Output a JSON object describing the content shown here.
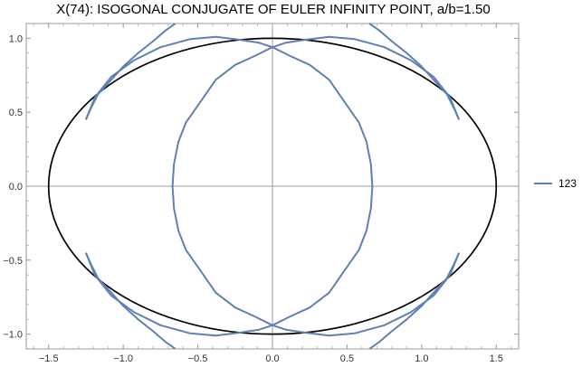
{
  "chart_data": {
    "type": "line",
    "title": "X(74): ISOGONAL CONJUGATE OF EULER INFINITY POINT, a/b=1.50",
    "xlim": [
      -1.65,
      1.65
    ],
    "ylim": [
      -1.1,
      1.1
    ],
    "xticks": [
      {
        "value": -1.5,
        "label": "−1.5"
      },
      {
        "value": -1.0,
        "label": "−1.0"
      },
      {
        "value": -0.5,
        "label": "−0.5"
      },
      {
        "value": 0.0,
        "label": "0.0"
      },
      {
        "value": 0.5,
        "label": "0.5"
      },
      {
        "value": 1.0,
        "label": "1.0"
      },
      {
        "value": 1.5,
        "label": "1.5"
      }
    ],
    "yticks": [
      {
        "value": -1.0,
        "label": "−1.0"
      },
      {
        "value": -0.5,
        "label": "−0.5"
      },
      {
        "value": 0.0,
        "label": "0.0"
      },
      {
        "value": 0.5,
        "label": "0.5"
      },
      {
        "value": 1.0,
        "label": "1.0"
      }
    ],
    "grid": false,
    "legend_position": "right",
    "ellipse": {
      "a": 1.5,
      "b": 1.0,
      "color": "#000000"
    },
    "series": [
      {
        "name": "123",
        "color": "#5e81b5",
        "segments": [
          [
            [
              -1.25,
              0.45
            ],
            [
              -1.22,
              0.52
            ],
            [
              -1.17,
              0.62
            ],
            [
              -1.08,
              0.72
            ],
            [
              -1.0,
              0.81
            ],
            [
              -0.9,
              0.9
            ],
            [
              -0.8,
              0.98
            ],
            [
              -0.72,
              1.05
            ],
            [
              -0.65,
              1.1
            ]
          ],
          [
            [
              1.25,
              0.45
            ],
            [
              1.22,
              0.52
            ],
            [
              1.17,
              0.62
            ],
            [
              1.08,
              0.72
            ],
            [
              1.0,
              0.81
            ],
            [
              0.9,
              0.9
            ],
            [
              0.8,
              0.98
            ],
            [
              0.72,
              1.05
            ],
            [
              0.65,
              1.1
            ]
          ],
          [
            [
              -1.25,
              -0.45
            ],
            [
              -1.22,
              -0.52
            ],
            [
              -1.17,
              -0.62
            ],
            [
              -1.08,
              -0.72
            ],
            [
              -1.0,
              -0.81
            ],
            [
              -0.9,
              -0.9
            ],
            [
              -0.8,
              -0.98
            ],
            [
              -0.72,
              -1.05
            ],
            [
              -0.65,
              -1.1
            ]
          ],
          [
            [
              1.25,
              -0.45
            ],
            [
              1.22,
              -0.52
            ],
            [
              1.17,
              -0.62
            ],
            [
              1.08,
              -0.72
            ],
            [
              1.0,
              -0.81
            ],
            [
              0.9,
              -0.9
            ],
            [
              0.8,
              -0.98
            ],
            [
              0.72,
              -1.05
            ],
            [
              0.65,
              -1.1
            ]
          ],
          [
            [
              -1.25,
              0.45
            ],
            [
              -1.19,
              0.6
            ],
            [
              -1.08,
              0.74
            ],
            [
              -0.93,
              0.85
            ],
            [
              -0.75,
              0.94
            ],
            [
              -0.55,
              0.995
            ],
            [
              -0.38,
              1.01
            ],
            [
              -0.22,
              0.99
            ],
            [
              -0.09,
              0.97
            ],
            [
              0.0,
              0.94
            ],
            [
              0.12,
              0.88
            ],
            [
              0.25,
              0.82
            ],
            [
              0.38,
              0.72
            ],
            [
              0.49,
              0.56
            ],
            [
              0.58,
              0.43
            ],
            [
              0.63,
              0.3
            ],
            [
              0.66,
              0.15
            ],
            [
              0.67,
              0.0
            ],
            [
              0.66,
              -0.15
            ],
            [
              0.63,
              -0.3
            ],
            [
              0.58,
              -0.43
            ],
            [
              0.49,
              -0.56
            ],
            [
              0.38,
              -0.72
            ],
            [
              0.25,
              -0.82
            ],
            [
              0.12,
              -0.88
            ],
            [
              0.0,
              -0.94
            ],
            [
              -0.09,
              -0.97
            ],
            [
              -0.22,
              -0.99
            ],
            [
              -0.38,
              -1.01
            ],
            [
              -0.55,
              -0.995
            ],
            [
              -0.75,
              -0.94
            ],
            [
              -0.93,
              -0.85
            ],
            [
              -1.08,
              -0.74
            ],
            [
              -1.19,
              -0.6
            ],
            [
              -1.25,
              -0.45
            ]
          ],
          [
            [
              1.25,
              0.45
            ],
            [
              1.19,
              0.6
            ],
            [
              1.08,
              0.74
            ],
            [
              0.93,
              0.85
            ],
            [
              0.75,
              0.94
            ],
            [
              0.55,
              0.995
            ],
            [
              0.38,
              1.01
            ],
            [
              0.22,
              0.99
            ],
            [
              0.09,
              0.97
            ],
            [
              0.0,
              0.94
            ],
            [
              -0.12,
              0.88
            ],
            [
              -0.25,
              0.82
            ],
            [
              -0.38,
              0.72
            ],
            [
              -0.49,
              0.56
            ],
            [
              -0.58,
              0.43
            ],
            [
              -0.63,
              0.3
            ],
            [
              -0.66,
              0.15
            ],
            [
              -0.67,
              0.0
            ],
            [
              -0.66,
              -0.15
            ],
            [
              -0.63,
              -0.3
            ],
            [
              -0.58,
              -0.43
            ],
            [
              -0.49,
              -0.56
            ],
            [
              -0.38,
              -0.72
            ],
            [
              -0.25,
              -0.82
            ],
            [
              -0.12,
              -0.88
            ],
            [
              0.0,
              -0.94
            ],
            [
              0.09,
              -0.97
            ],
            [
              0.22,
              -0.99
            ],
            [
              0.38,
              -1.01
            ],
            [
              0.55,
              -0.995
            ],
            [
              0.75,
              -0.94
            ],
            [
              0.93,
              -0.85
            ],
            [
              1.08,
              -0.74
            ],
            [
              1.19,
              -0.6
            ],
            [
              1.25,
              -0.45
            ]
          ]
        ]
      }
    ]
  }
}
